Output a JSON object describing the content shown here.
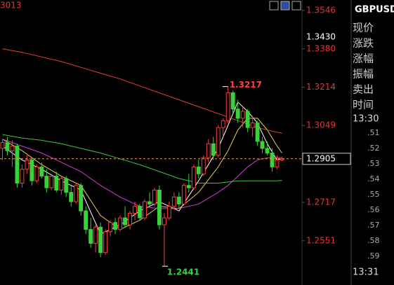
{
  "chart_data": {
    "type": "candlestick",
    "ylim": [
      1.236,
      1.3591
    ],
    "yticks": [
      1.3546,
      {
        "value": 1.338,
        "label": "1.3380"
      },
      1.3214,
      1.3049,
      1.2717,
      1.2551
    ],
    "up_color": "#ff3c3c",
    "down_color": "#3ad13a",
    "candles": {
      "open": [
        1.295,
        1.2975,
        1.294,
        1.296,
        1.28,
        1.286,
        1.29,
        1.281,
        1.287,
        1.283,
        1.278,
        1.283,
        1.277,
        1.282,
        1.276,
        1.272,
        1.279,
        1.268,
        1.26,
        1.254,
        1.261,
        1.25,
        1.259,
        1.263,
        1.26,
        1.265,
        1.262,
        1.267,
        1.27,
        1.265,
        1.272,
        1.271,
        1.277,
        1.262,
        1.265,
        1.27,
        1.274,
        1.271,
        1.279,
        1.278,
        1.287,
        1.284,
        1.291,
        1.297,
        1.292,
        1.304,
        1.307,
        1.319,
        1.312,
        1.308,
        1.311,
        1.304,
        1.306,
        1.298,
        1.295,
        1.293,
        1.287,
        1.29
      ],
      "high": [
        1.299,
        1.3,
        1.2985,
        1.297,
        1.288,
        1.292,
        1.291,
        1.288,
        1.289,
        1.286,
        1.284,
        1.285,
        1.283,
        1.283,
        1.279,
        1.28,
        1.28,
        1.27,
        1.265,
        1.262,
        1.263,
        1.26,
        1.264,
        1.265,
        1.266,
        1.27,
        1.268,
        1.272,
        1.271,
        1.273,
        1.276,
        1.278,
        1.279,
        1.267,
        1.272,
        1.276,
        1.276,
        1.28,
        1.284,
        1.288,
        1.29,
        1.292,
        1.299,
        1.3,
        1.305,
        1.308,
        1.3217,
        1.32,
        1.316,
        1.313,
        1.312,
        1.309,
        1.307,
        1.3,
        1.298,
        1.295,
        1.292,
        1.2915
      ],
      "low": [
        1.29,
        1.292,
        1.287,
        1.278,
        1.278,
        1.284,
        1.279,
        1.28,
        1.282,
        1.276,
        1.277,
        1.276,
        1.275,
        1.274,
        1.27,
        1.271,
        1.266,
        1.258,
        1.252,
        1.25,
        1.248,
        1.249,
        1.257,
        1.258,
        1.259,
        1.261,
        1.26,
        1.264,
        1.264,
        1.264,
        1.27,
        1.27,
        1.26,
        1.2441,
        1.264,
        1.269,
        1.269,
        1.27,
        1.276,
        1.277,
        1.282,
        1.283,
        1.289,
        1.29,
        1.291,
        1.3,
        1.306,
        1.31,
        1.306,
        1.304,
        1.302,
        1.3,
        1.296,
        1.293,
        1.292,
        1.285,
        1.286,
        1.2895
      ],
      "close": [
        1.2975,
        1.294,
        1.296,
        1.28,
        1.286,
        1.29,
        1.281,
        1.287,
        1.283,
        1.278,
        1.283,
        1.277,
        1.282,
        1.276,
        1.272,
        1.279,
        1.268,
        1.26,
        1.254,
        1.261,
        1.25,
        1.259,
        1.263,
        1.26,
        1.265,
        1.262,
        1.267,
        1.27,
        1.265,
        1.272,
        1.271,
        1.277,
        1.262,
        1.265,
        1.27,
        1.274,
        1.271,
        1.279,
        1.278,
        1.287,
        1.284,
        1.291,
        1.297,
        1.292,
        1.304,
        1.307,
        1.319,
        1.312,
        1.308,
        1.311,
        1.304,
        1.306,
        1.298,
        1.295,
        1.293,
        1.287,
        1.29,
        1.2905
      ]
    },
    "lines": {
      "x": [
        0,
        4,
        8,
        12,
        16,
        20,
        24,
        28,
        32,
        36,
        40,
        44,
        46,
        48,
        50,
        52,
        54,
        56,
        57
      ],
      "series": [
        {
          "color": "#ffffff",
          "values": [
            1.296,
            1.29,
            1.286,
            1.281,
            1.277,
            1.258,
            1.262,
            1.268,
            1.272,
            1.268,
            1.281,
            1.295,
            1.305,
            1.315,
            1.311,
            1.306,
            1.297,
            1.29,
            1.2905
          ]
        },
        {
          "color": "#e8d44a",
          "values": [
            1.299,
            1.294,
            1.288,
            1.283,
            1.279,
            1.266,
            1.26,
            1.264,
            1.27,
            1.269,
            1.276,
            1.287,
            1.294,
            1.303,
            1.308,
            1.308,
            1.303,
            1.296,
            1.293
          ]
        },
        {
          "color": "#d63ad6",
          "values": [
            1.299,
            1.296,
            1.293,
            1.289,
            1.285,
            1.279,
            1.274,
            1.27,
            1.269,
            1.269,
            1.271,
            1.276,
            1.279,
            1.283,
            1.287,
            1.29,
            1.291,
            1.291,
            1.291
          ]
        },
        {
          "color": "#3cc83c",
          "values": [
            1.301,
            1.2995,
            1.2985,
            1.297,
            1.295,
            1.293,
            1.2905,
            1.288,
            1.285,
            1.282,
            1.28,
            1.28,
            1.2805,
            1.281,
            1.281,
            1.281,
            1.281,
            1.281,
            1.2812
          ]
        },
        {
          "color": "#e8412c",
          "values": [
            1.338,
            1.3365,
            1.3345,
            1.3325,
            1.33,
            1.3275,
            1.325,
            1.322,
            1.319,
            1.316,
            1.313,
            1.31,
            1.3085,
            1.307,
            1.3055,
            1.304,
            1.303,
            1.302,
            1.3015
          ]
        }
      ]
    },
    "annotations": {
      "high": {
        "index": 46,
        "value": 1.3217
      },
      "low": {
        "index": 33,
        "value": 1.2441
      },
      "current": {
        "value": 1.2905
      },
      "marker": {
        "value": 1.343,
        "label": "1.3430"
      },
      "corner": "3013"
    }
  },
  "panel": {
    "symbol": "GBPUSD",
    "fields": [
      "现价",
      "涨跌",
      "涨幅",
      "振幅",
      "卖出",
      "时间"
    ],
    "time_start": "13:30",
    "ticks": [
      ".51",
      ".52",
      ".53",
      ".54",
      ".55",
      ".56",
      ".57",
      ".58",
      ".59"
    ],
    "time_end": "13:31"
  }
}
